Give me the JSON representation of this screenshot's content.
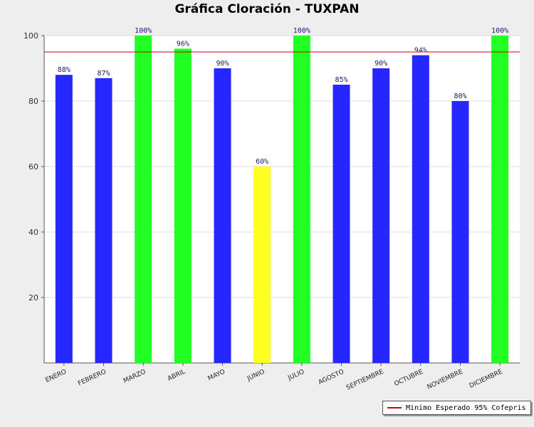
{
  "chart_data": {
    "type": "bar",
    "title": "Gráfica Cloración - TUXPAN",
    "categories": [
      "ENERO",
      "FEBRERO",
      "MARZO",
      "ABRIL",
      "MAYO",
      "JUNIO",
      "JULIO",
      "AGOSTO",
      "SEPTIEMBRE",
      "OCTUBRE",
      "NOVIEMBRE",
      "DICIEMBRE"
    ],
    "values": [
      88,
      87,
      100,
      96,
      90,
      60,
      100,
      85,
      90,
      94,
      80,
      100
    ],
    "data_labels": [
      "88%",
      "87%",
      "100%",
      "96%",
      "90%",
      "60%",
      "100%",
      "85%",
      "90%",
      "94%",
      "80%",
      "100%"
    ],
    "bar_colors": [
      "#2626ff",
      "#2626ff",
      "#22ff22",
      "#22ff22",
      "#2626ff",
      "#ffff22",
      "#22ff22",
      "#2626ff",
      "#2626ff",
      "#2626ff",
      "#2626ff",
      "#22ff22"
    ],
    "y_ticks": [
      20,
      40,
      60,
      80,
      100
    ],
    "ylim": [
      0,
      100
    ],
    "reference_line": {
      "value": 95,
      "label": "Minimo Esperado 95% Cofepris",
      "color": "#cc0000"
    },
    "grid": true,
    "legend_position": "bottom-right"
  }
}
